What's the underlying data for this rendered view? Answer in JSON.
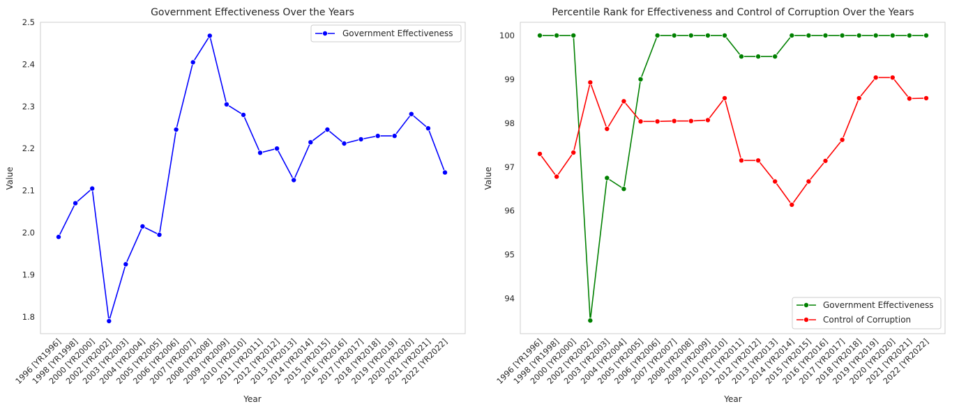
{
  "chart_data": [
    {
      "type": "line",
      "title": "Government Effectiveness Over the Years",
      "xlabel": "Year",
      "ylabel": "Value",
      "grid": false,
      "legend_position": "top-right",
      "ylim": [
        1.76,
        2.5
      ],
      "yticks": [
        "1.8",
        "1.9",
        "2.0",
        "2.1",
        "2.2",
        "2.3",
        "2.4",
        "2.5"
      ],
      "categories": [
        "1996 [YR1996]",
        "1998 [YR1998]",
        "2000 [YR2000]",
        "2002 [YR2002]",
        "2003 [YR2003]",
        "2004 [YR2004]",
        "2005 [YR2005]",
        "2006 [YR2006]",
        "2007 [YR2007]",
        "2008 [YR2008]",
        "2009 [YR2009]",
        "2010 [YR2010]",
        "2011 [YR2011]",
        "2012 [YR2012]",
        "2013 [YR2013]",
        "2014 [YR2014]",
        "2015 [YR2015]",
        "2016 [YR2016]",
        "2017 [YR2017]",
        "2018 [YR2018]",
        "2019 [YR2019]",
        "2020 [YR2020]",
        "2021 [YR2021]",
        "2022 [YR2022]"
      ],
      "series": [
        {
          "name": "Government Effectiveness",
          "color": "#0000ff",
          "values": [
            1.99,
            2.07,
            2.105,
            1.79,
            1.925,
            2.015,
            1.995,
            2.245,
            2.405,
            2.468,
            2.305,
            2.28,
            2.19,
            2.2,
            2.125,
            2.215,
            2.245,
            2.212,
            2.222,
            2.23,
            2.23,
            2.282,
            2.248,
            2.143
          ]
        }
      ]
    },
    {
      "type": "line",
      "title": "Percentile Rank for Effectiveness and Control of Corruption Over the Years",
      "xlabel": "Year",
      "ylabel": "Value",
      "grid": false,
      "legend_position": "bottom-right",
      "ylim": [
        93.2,
        100.3
      ],
      "yticks": [
        "94",
        "95",
        "96",
        "97",
        "98",
        "99",
        "100"
      ],
      "categories": [
        "1996 [YR1996]",
        "1998 [YR1998]",
        "2000 [YR2000]",
        "2002 [YR2002]",
        "2003 [YR2003]",
        "2004 [YR2004]",
        "2005 [YR2005]",
        "2006 [YR2006]",
        "2007 [YR2007]",
        "2008 [YR2008]",
        "2009 [YR2009]",
        "2010 [YR2010]",
        "2011 [YR2011]",
        "2012 [YR2012]",
        "2013 [YR2013]",
        "2014 [YR2014]",
        "2015 [YR2015]",
        "2016 [YR2016]",
        "2017 [YR2017]",
        "2018 [YR2018]",
        "2019 [YR2019]",
        "2020 [YR2020]",
        "2021 [YR2021]",
        "2022 [YR2022]"
      ],
      "series": [
        {
          "name": "Government Effectiveness",
          "color": "#008000",
          "values": [
            100,
            100,
            100,
            93.5,
            96.75,
            96.5,
            99.0,
            100,
            100,
            100,
            100,
            100,
            99.52,
            99.52,
            99.52,
            100,
            100,
            100,
            100,
            100,
            100,
            100,
            100,
            100
          ]
        },
        {
          "name": "Control of Corruption",
          "color": "#ff0000",
          "values": [
            97.3,
            96.78,
            97.33,
            98.93,
            97.87,
            98.5,
            98.04,
            98.04,
            98.05,
            98.05,
            98.07,
            98.57,
            97.15,
            97.15,
            96.67,
            96.14,
            96.67,
            97.14,
            97.62,
            98.57,
            99.04,
            99.04,
            98.56,
            98.57
          ]
        }
      ]
    }
  ]
}
